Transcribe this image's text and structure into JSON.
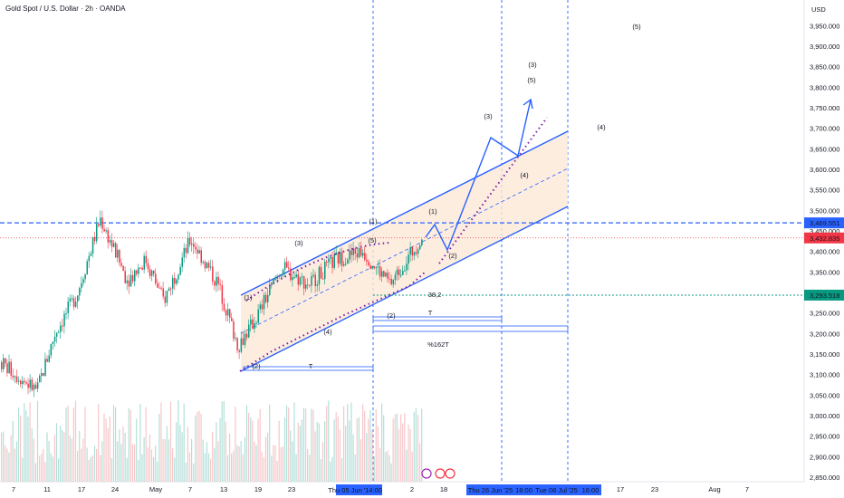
{
  "header": {
    "title": "Gold Spot / U.S. Dollar · 2h · OANDA"
  },
  "chart_data": {
    "type": "candlestick",
    "currency_label": "USD",
    "y_ticks": [
      "3,950.000",
      "3,900.000",
      "3,850.000",
      "3,800.000",
      "3,750.000",
      "3,700.000",
      "3,650.000",
      "3,600.000",
      "3,550.000",
      "3,500.000",
      "3,450.000",
      "3,400.000",
      "3,350.000",
      "3,300.000",
      "3,250.000",
      "3,200.000",
      "3,150.000",
      "3,100.000",
      "3,050.000",
      "3,000.000",
      "2,950.000",
      "2,900.000",
      "2,850.000"
    ],
    "ylim": [
      2835,
      3985
    ],
    "x_ticks": [
      "7",
      "11",
      "17",
      "24",
      "May",
      "7",
      "13",
      "19",
      "23",
      "2",
      "18",
      "17",
      "23",
      "Aug",
      "7"
    ],
    "x_highlights": [
      "Thu 05 Jun '25",
      "14:00",
      "Thu 26 Jun '25",
      "18:00",
      "Tue 08 Jul '25",
      "16:00"
    ],
    "price_labels": [
      {
        "text": "3,469.551",
        "value": 3469.551,
        "color": "#2962ff"
      },
      {
        "text": "3,432.835",
        "value": 3432.835,
        "color": "#f23645"
      },
      {
        "text": "3,293.518",
        "value": 3293.518,
        "color": "#089981"
      }
    ],
    "waves": [
      {
        "text": "(1)",
        "color": "#2962ff"
      },
      {
        "text": "(2)",
        "color": "#2962ff"
      },
      {
        "text": "(3)",
        "color": "#2962ff"
      },
      {
        "text": "(4)",
        "color": "#2962ff"
      },
      {
        "text": "(5)",
        "color": "#2962ff"
      },
      {
        "text": "(1)",
        "color": "#131722"
      },
      {
        "text": "(2)",
        "color": "#131722"
      },
      {
        "text": "(1)",
        "color": "#2962ff"
      },
      {
        "text": "(2)",
        "color": "#2962ff"
      },
      {
        "text": "(3)",
        "color": "#2962ff"
      },
      {
        "text": "(4)",
        "color": "#2962ff"
      },
      {
        "text": "(5)",
        "color": "#2962ff"
      },
      {
        "text": "(3)",
        "color": "#131722"
      },
      {
        "text": "(4)",
        "color": "#131722"
      },
      {
        "text": "(5)",
        "color": "#131722"
      }
    ],
    "annotations": [
      "T",
      "T",
      "%162T",
      "38,2"
    ],
    "colors": {
      "up": "#089981",
      "down": "#f23645",
      "channel": "#2962ff",
      "fill": "#fbe9d7"
    },
    "grid": false,
    "legend": "none"
  }
}
